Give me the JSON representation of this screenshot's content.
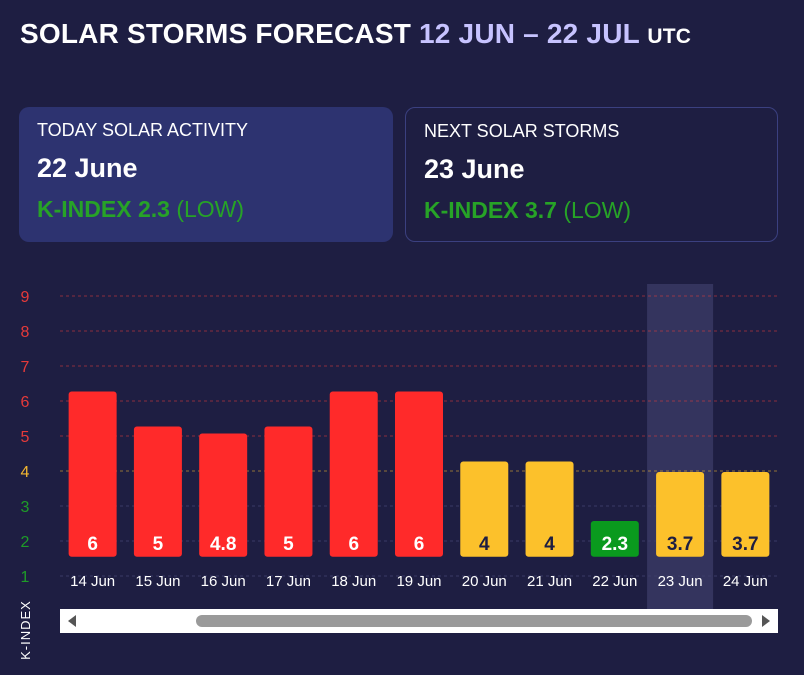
{
  "header": {
    "title_main": "SOLAR STORMS FORECAST",
    "title_range": "12 JUN – 22 JUL",
    "title_tz": "UTC"
  },
  "cards": {
    "today": {
      "label": "TODAY SOLAR ACTIVITY",
      "date": "22 June",
      "k_text": "K-INDEX 2.3",
      "level": "(LOW)"
    },
    "next": {
      "label": "NEXT SOLAR STORMS",
      "date": "23 June",
      "k_text": "K-INDEX 3.7",
      "level": "(LOW)"
    }
  },
  "colors": {
    "background": "#1e1e42",
    "high": "#ff2a2a",
    "moderate": "#fcc12b",
    "low": "#0a9a1e",
    "low_text": "#27a327",
    "highlight_band": "#34345e"
  },
  "chart_data": {
    "type": "bar",
    "ylabel": "K-INDEX",
    "xlabel": "",
    "ylim": [
      1,
      9
    ],
    "yticks": [
      1,
      2,
      3,
      4,
      5,
      6,
      7,
      8,
      9
    ],
    "ytick_colors": {
      "1": "#1e9c28",
      "2": "#1e9c28",
      "3": "#1e9c28",
      "4": "#f2b630",
      "5": "#e53a3a",
      "6": "#e53a3a",
      "7": "#e53a3a",
      "8": "#e53a3a",
      "9": "#e53a3a"
    },
    "grid": true,
    "categories": [
      "14 Jun",
      "15 Jun",
      "16 Jun",
      "17 Jun",
      "18 Jun",
      "19 Jun",
      "20 Jun",
      "21 Jun",
      "22 Jun",
      "23 Jun",
      "24 Jun"
    ],
    "values": [
      6,
      5,
      4.8,
      5,
      6,
      6,
      4,
      4,
      2.3,
      3.7,
      3.7
    ],
    "labels": [
      "6",
      "5",
      "4.8",
      "5",
      "6",
      "6",
      "4",
      "4",
      "2.3",
      "3.7",
      "3.7"
    ],
    "highlighted_category": "23 Jun"
  },
  "scrollbar": {
    "left_arrow": "scroll-left-arrow",
    "right_arrow": "scroll-right-arrow"
  }
}
